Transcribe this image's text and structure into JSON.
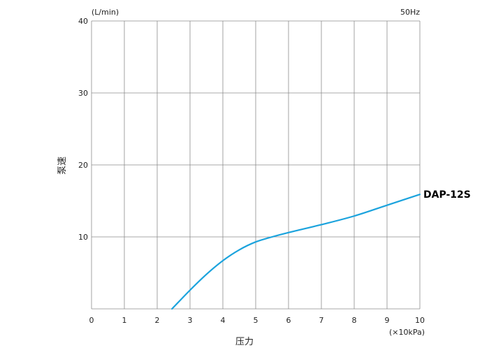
{
  "chart_data": {
    "type": "line",
    "xlabel": "压力",
    "ylabel": "泵速",
    "x_unit": "(×10kPa)",
    "y_unit": "(L/min)",
    "frequency": "50Hz",
    "xlim": [
      0,
      10
    ],
    "ylim": [
      0,
      40
    ],
    "x_ticks": [
      "0",
      "1",
      "2",
      "3",
      "4",
      "5",
      "6",
      "7",
      "8",
      "9",
      "10"
    ],
    "y_ticks": [
      "10",
      "20",
      "30",
      "40"
    ],
    "grid": true,
    "series": [
      {
        "name": "DAP-12S",
        "color": "#1ba3dd",
        "points": [
          [
            2.45,
            0
          ],
          [
            3.0,
            2.6
          ],
          [
            3.5,
            4.8
          ],
          [
            4.0,
            6.7
          ],
          [
            4.5,
            8.2
          ],
          [
            5.0,
            9.3
          ],
          [
            5.5,
            10.0
          ],
          [
            6.0,
            10.6
          ],
          [
            7.0,
            11.7
          ],
          [
            8.0,
            12.9
          ],
          [
            9.0,
            14.4
          ],
          [
            10.0,
            15.9
          ]
        ]
      }
    ]
  }
}
